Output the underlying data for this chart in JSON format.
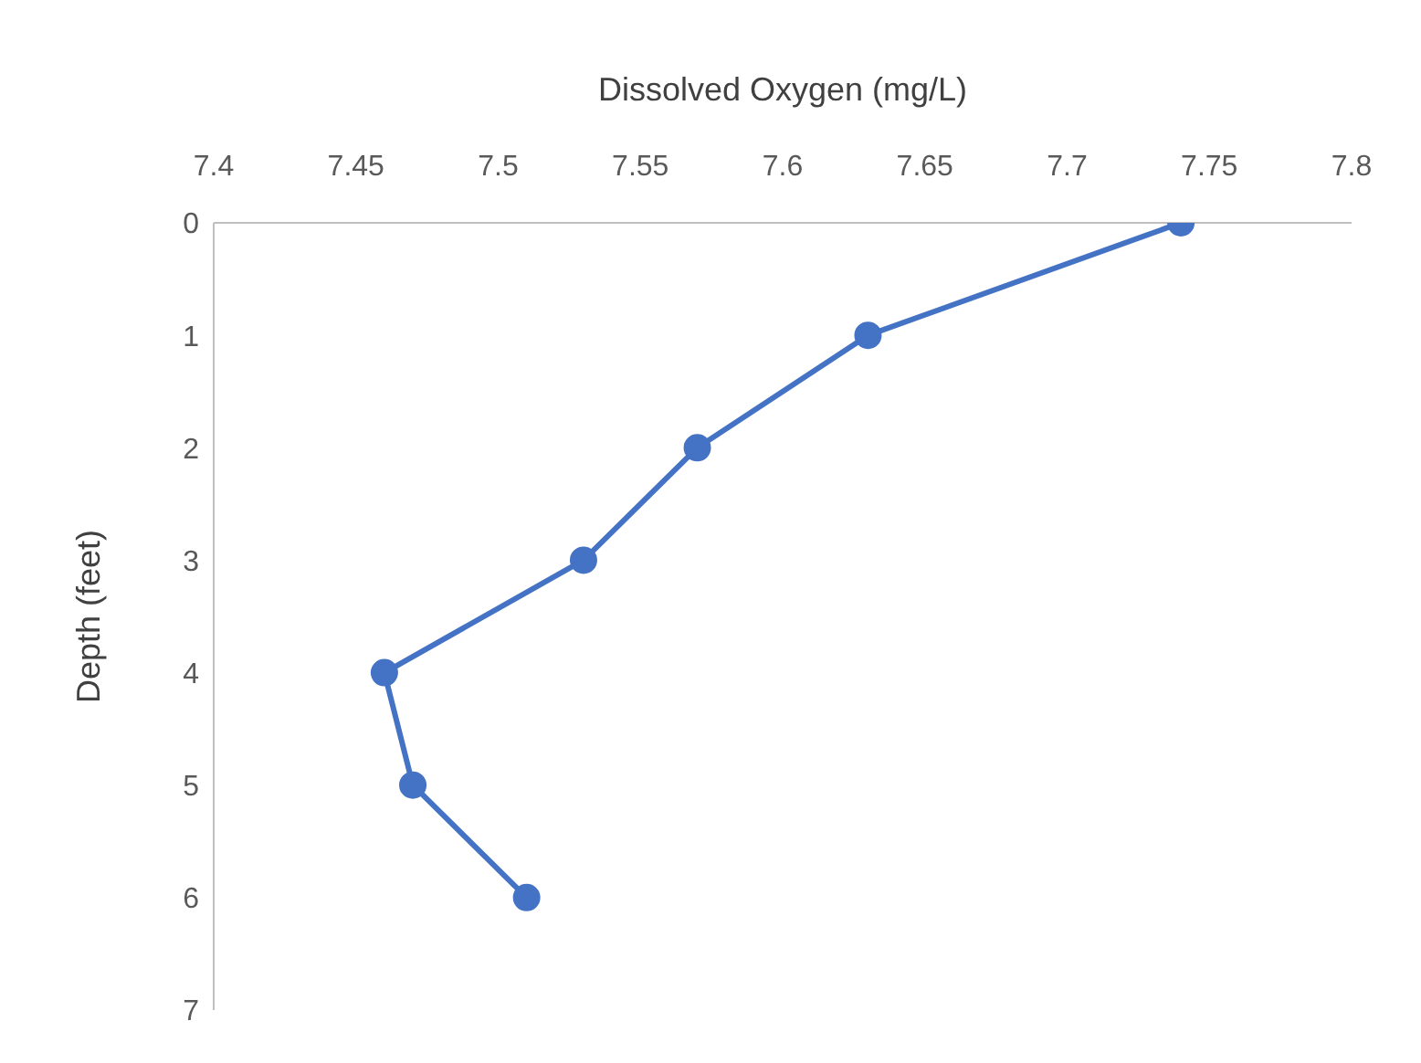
{
  "chart_data": {
    "type": "line",
    "xlabel": "Dissolved Oxygen (mg/L)",
    "ylabel": "Depth (feet)",
    "x": [
      7.74,
      7.63,
      7.57,
      7.53,
      7.46,
      7.47,
      7.51
    ],
    "series": [
      {
        "color": "#4472c4",
        "values": [
          0,
          1,
          2,
          3,
          4,
          5,
          6
        ]
      }
    ],
    "xlim": [
      7.4,
      7.8
    ],
    "xticks": [
      7.4,
      7.45,
      7.5,
      7.55,
      7.6,
      7.65,
      7.7,
      7.75,
      7.8
    ],
    "ylim": [
      7,
      0
    ],
    "yticks": [
      0,
      1,
      2,
      3,
      4,
      5,
      6,
      7
    ],
    "grid": false,
    "legend": false,
    "marker": "circle",
    "line_style": "solid"
  }
}
